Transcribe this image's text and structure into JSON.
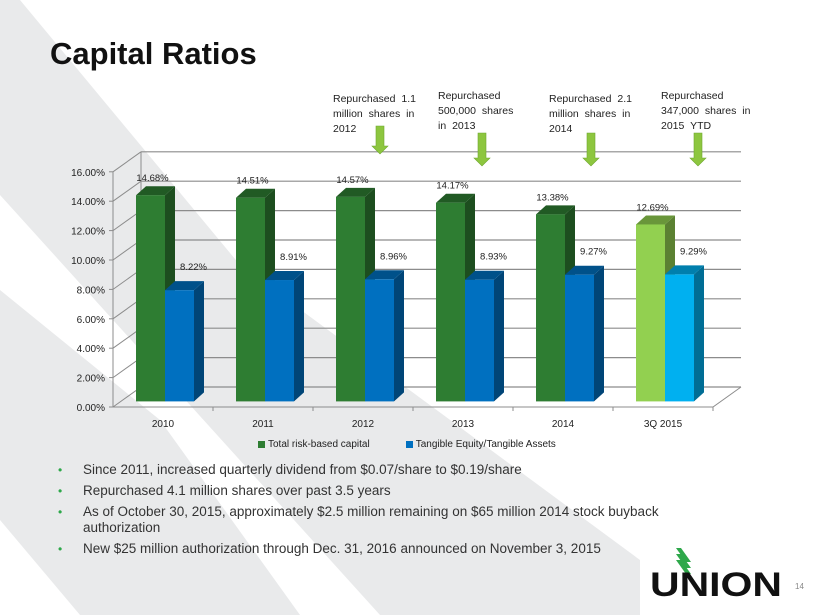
{
  "slide": {
    "title": "Capital Ratios",
    "page_number": "14",
    "logo_text": "UNION",
    "colors": {
      "green_series": "#2e7d32",
      "blue_series": "#0070c0",
      "highlight_green": "#92d050",
      "highlight_blue": "#00b0f0",
      "arrow": "#8dc63f",
      "bullet": "#2ea84a",
      "logo_green": "#2ea84a"
    }
  },
  "callouts": [
    {
      "text": "Repurchased 1.1 million shares in 2012",
      "lines": [
        "Repurchased 1.1",
        "million shares in",
        "2012"
      ],
      "category": "2012"
    },
    {
      "text": "Repurchased 500,000 shares in 2013",
      "lines": [
        "Repurchased",
        "500,000 shares",
        "in 2013"
      ],
      "category": "2013"
    },
    {
      "text": "Repurchased 2.1 million shares in 2014",
      "lines": [
        "Repurchased 2.1",
        "million shares in",
        "2014"
      ],
      "category": "2014"
    },
    {
      "text": "Repurchased 347,000 shares in 2015 YTD",
      "lines": [
        "Repurchased",
        "347,000 shares in",
        "2015 YTD"
      ],
      "category": "3Q 2015"
    }
  ],
  "bullets": [
    "Since 2011, increased quarterly dividend from $0.07/share to $0.19/share",
    "Repurchased 4.1 million shares over past 3.5 years",
    "As of October 30, 2015, approximately $2.5 million remaining on $65 million 2014 stock buyback authorization",
    "New $25 million authorization through Dec. 31, 2016 announced on November 3, 2015"
  ],
  "chart_data": {
    "type": "bar",
    "style": "3d-clustered-column",
    "title": "",
    "xlabel": "",
    "ylabel": "",
    "categories": [
      "2010",
      "2011",
      "2012",
      "2013",
      "2014",
      "3Q 2015"
    ],
    "series": [
      {
        "name": "Total risk-based capital",
        "values": [
          14.68,
          14.51,
          14.57,
          14.17,
          13.38,
          12.69
        ],
        "labels": [
          "14.68%",
          "14.51%",
          "14.57%",
          "14.17%",
          "13.38%",
          "12.69%"
        ]
      },
      {
        "name": "Tangible Equity/Tangible Assets",
        "values": [
          8.22,
          8.91,
          8.96,
          8.93,
          9.27,
          9.29
        ],
        "labels": [
          "8.22%",
          "8.91%",
          "8.96%",
          "8.93%",
          "9.27%",
          "9.29%"
        ]
      }
    ],
    "ylim": [
      0,
      16
    ],
    "yticks": [
      "0.00%",
      "2.00%",
      "4.00%",
      "6.00%",
      "8.00%",
      "10.00%",
      "12.00%",
      "14.00%",
      "16.00%"
    ],
    "grid": true,
    "legend": "bottom",
    "highlight_category": "3Q 2015"
  }
}
